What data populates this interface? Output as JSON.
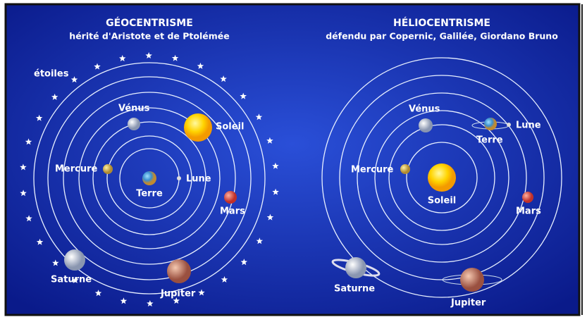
{
  "panels": [
    {
      "title": "GÉOCENTRISME",
      "subtitle": "hérité d'Aristote et de Ptolémée",
      "labels": {
        "etoiles": "étoiles",
        "venus": "Vénus",
        "soleil": "Soleil",
        "mercure": "Mercure",
        "terre": "Terre",
        "lune": "Lune",
        "mars": "Mars",
        "saturne": "Saturne",
        "jupiter": "Jupiter"
      }
    },
    {
      "title": "HÉLIOCENTRISME",
      "subtitle": "défendu par Copernic, Galilée, Giordano Bruno",
      "labels": {
        "venus": "Vénus",
        "terre": "Terre",
        "lune": "Lune",
        "mercure": "Mercure",
        "soleil": "Soleil",
        "mars": "Mars",
        "saturne": "Saturne",
        "jupiter": "Jupiter"
      }
    }
  ]
}
